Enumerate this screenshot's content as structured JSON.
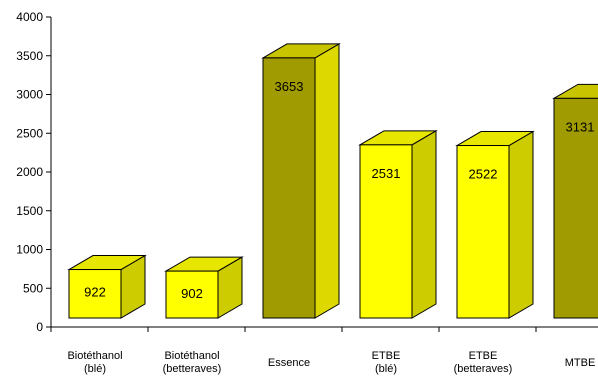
{
  "chart_data": {
    "type": "bar",
    "style": "3d",
    "categories": [
      [
        "Biotéthanol",
        "(blé)"
      ],
      [
        "Biotéthanol",
        "(betteraves)"
      ],
      [
        "Essence"
      ],
      [
        "ETBE",
        "(blé)"
      ],
      [
        "ETBE",
        "(betteraves)"
      ],
      [
        "MTBE"
      ]
    ],
    "values": [
      922,
      902,
      3653,
      2531,
      2522,
      3131
    ],
    "value_labels": [
      "922",
      "902",
      "3653",
      "2531",
      "2522",
      "3131"
    ],
    "ylim": [
      0,
      4000
    ],
    "yticks": [
      0,
      500,
      1000,
      1500,
      2000,
      2500,
      3000,
      3500,
      4000
    ],
    "ytick_labels": [
      "0",
      "500",
      "1000",
      "1500",
      "2000",
      "2500",
      "3000",
      "3500",
      "4000"
    ],
    "grid": false,
    "title": "",
    "xlabel": "",
    "ylabel": "",
    "colors": {
      "biofuel_front": "#FFFF00",
      "biofuel_side": "#CCCC00",
      "biofuel_top": "#E6E600",
      "fossil_front": "#A09B00",
      "fossil_side": "#DCD800",
      "fossil_top": "#C8C400",
      "outline": "#000000"
    },
    "bar_kinds": [
      "biofuel",
      "biofuel",
      "fossil",
      "biofuel",
      "biofuel",
      "fossil"
    ]
  }
}
